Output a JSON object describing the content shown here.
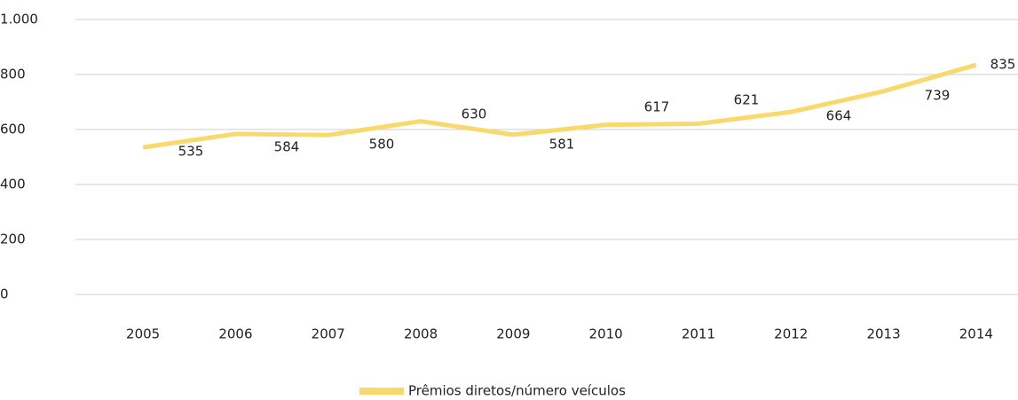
{
  "chart_data": {
    "type": "line",
    "categories": [
      "2005",
      "2006",
      "2007",
      "2008",
      "2009",
      "2010",
      "2011",
      "2012",
      "2013",
      "2014"
    ],
    "series": [
      {
        "name": "Prêmios diretos/número veículos",
        "color": "#f9d96b",
        "values": [
          535,
          584,
          580,
          630,
          581,
          617,
          621,
          664,
          739,
          835
        ]
      }
    ],
    "ylim": [
      0,
      1000
    ],
    "yticks": [
      0,
      200,
      400,
      600,
      800,
      {
        "value": 1000,
        "label": "1.000"
      }
    ],
    "grid": true,
    "legend": "bottom"
  }
}
